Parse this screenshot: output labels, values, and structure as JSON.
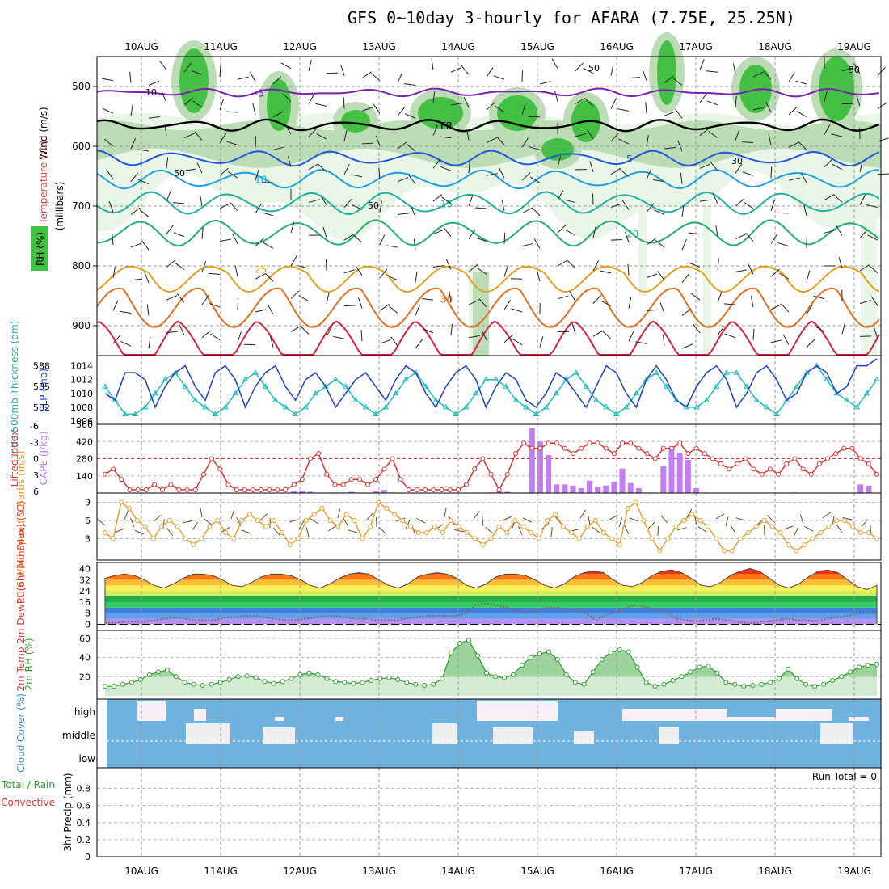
{
  "title": "GFS 0~10day 3-hourly for AFARA (7.75E, 25.25N)",
  "colors": {
    "cont_temp_neg": "#7a1fb0",
    "cont_blue": "#2255dd",
    "cont_cyan": "#1aa0dd",
    "cont_teal": "#22b0a0",
    "cont_green": "#22b070",
    "cont_orange1": "#e0a020",
    "cont_orange2": "#e07020",
    "cont_red": "#dd2040",
    "rh_light": "#e9f5e7",
    "rh_mid": "#bcdcb5",
    "rh_dark": "#43c043",
    "slp_line": "#1f3fc8",
    "thick_line": "#22bbbb",
    "li_line": "#dd3333",
    "cape_bar": "#c27ef2",
    "wind10": "#e8a030",
    "rh2": "#339933",
    "cloud_bg": "#6fb2dd",
    "cloud_fill": "#eeeeee"
  },
  "chart_data": [
    {
      "type": "contour",
      "name": "upper-air",
      "ylabel": "(millibars)",
      "side_labels": {
        "rh": "RH (%)",
        "temperature": "Temperature (°C)",
        "wind": "Wind (m/s)"
      },
      "days": [
        "10AUG",
        "11AUG",
        "12AUG",
        "13AUG",
        "14AUG",
        "15AUG",
        "16AUG",
        "17AUG",
        "18AUG",
        "19AUG"
      ],
      "pressure_ticks": [
        500,
        600,
        700,
        800,
        900
      ],
      "ylim": [
        450,
        950
      ],
      "freezing_label": "FR",
      "contours": [
        {
          "label": "-5",
          "level": 510,
          "color_key": "cont_temp_neg"
        },
        {
          "label": "FR",
          "level": 565,
          "color_key": "black"
        },
        {
          "label": "5",
          "level": 620,
          "color_key": "cont_blue"
        },
        {
          "label": "10",
          "level": 655,
          "color_key": "cont_cyan"
        },
        {
          "label": "15",
          "level": 695,
          "color_key": "cont_teal"
        },
        {
          "label": "20",
          "level": 745,
          "color_key": "cont_green"
        },
        {
          "label": "25",
          "level": 805,
          "color_key": "cont_orange1"
        },
        {
          "label": "30",
          "level": 855,
          "color_key": "cont_orange2"
        },
        {
          "label": "",
          "level": 920,
          "color_key": "cont_red"
        }
      ],
      "rh_labels": [
        "10",
        "50",
        "50",
        "30",
        "50",
        "50"
      ]
    },
    {
      "type": "line",
      "name": "slp-thickness",
      "ylabel_left": "1000-500mb Thickness (dm)",
      "ylabel_right": "SLP (mb)",
      "left_ticks": [
        582,
        585,
        588
      ],
      "right_ticks": [
        1006,
        1008,
        1010,
        1012,
        1014
      ],
      "series": [
        {
          "name": "SLP (mb)",
          "ylim": [
            1006,
            1015
          ],
          "values": [
            1010,
            1009,
            1013,
            1013,
            1012,
            1008,
            1011,
            1013,
            1014,
            1011,
            1009,
            1013,
            1014,
            1012,
            1008,
            1011,
            1013,
            1014,
            1011,
            1009,
            1012,
            1013,
            1011,
            1008,
            1010,
            1012,
            1013,
            1011,
            1009,
            1012,
            1014,
            1013,
            1010,
            1008,
            1011,
            1013,
            1014,
            1012,
            1008,
            1011,
            1013,
            1012,
            1009,
            1008,
            1010,
            1013,
            1012,
            1010,
            1008,
            1011,
            1014,
            1013,
            1010,
            1008,
            1012,
            1014,
            1012,
            1009,
            1008,
            1011,
            1013,
            1014,
            1012,
            1008,
            1010,
            1013,
            1014,
            1012,
            1009,
            1010,
            1013,
            1014,
            1013,
            1010,
            1011,
            1014,
            1014,
            1015
          ]
        },
        {
          "name": "Thickness (dm)",
          "ylim": [
            580,
            589
          ],
          "values": [
            585,
            583,
            581,
            581,
            582,
            584,
            586,
            587,
            585,
            583,
            582,
            581,
            582,
            584,
            586,
            587,
            585,
            583,
            582,
            581,
            582,
            584,
            585,
            586,
            585,
            583,
            582,
            581,
            582,
            584,
            586,
            587,
            585,
            583,
            582,
            581,
            582,
            584,
            586,
            586,
            585,
            583,
            582,
            581,
            582,
            584,
            586,
            587,
            585,
            583,
            582,
            581,
            582,
            584,
            586,
            587,
            585,
            583,
            582,
            582,
            583,
            585,
            587,
            587,
            585,
            583,
            582,
            581,
            583,
            585,
            587,
            588,
            586,
            584,
            583,
            582,
            584,
            586
          ]
        }
      ]
    },
    {
      "type": "bar+line",
      "name": "cape-li",
      "ylabel_left": "Lifted Index",
      "ylabel_right": "CAPE (J/kg)",
      "li_ticks": [
        "-6",
        "-3",
        "0",
        "3",
        "6"
      ],
      "cape_ticks": [
        140,
        280,
        420,
        560
      ],
      "cape_values": [
        0,
        0,
        0,
        0,
        0,
        0,
        0,
        0,
        0,
        0,
        0,
        0,
        0,
        0,
        0,
        0,
        0,
        0,
        0,
        0,
        0,
        0,
        0,
        15,
        20,
        10,
        0,
        0,
        5,
        5,
        10,
        0,
        0,
        20,
        25,
        5,
        0,
        0,
        0,
        0,
        0,
        0,
        0,
        0,
        0,
        0,
        0,
        5,
        15,
        10,
        0,
        0,
        530,
        420,
        310,
        70,
        70,
        60,
        40,
        100,
        50,
        60,
        90,
        200,
        80,
        40,
        5,
        0,
        220,
        380,
        330,
        270,
        40,
        5,
        0,
        0,
        0,
        0,
        0,
        0,
        0,
        0,
        0,
        0,
        5,
        0,
        0,
        0,
        0,
        0,
        0,
        0,
        70,
        60,
        0
      ],
      "li_values": [
        3,
        2,
        4,
        6,
        6,
        6,
        5,
        6,
        5,
        6,
        6,
        6,
        3,
        0,
        2,
        5,
        6,
        6,
        6,
        6,
        6,
        6,
        6,
        5,
        4,
        0,
        -1,
        3,
        5,
        5,
        4,
        4,
        5,
        4,
        2,
        0,
        4,
        6,
        6,
        6,
        6,
        6,
        6,
        6,
        5,
        2,
        0,
        3,
        6,
        3,
        -1,
        -3,
        -2,
        -2,
        -3,
        -3,
        -2,
        -1,
        -2,
        -3,
        -3,
        -2,
        -1,
        -3,
        -3,
        -2,
        -1,
        0,
        -2,
        -2,
        -3,
        -1,
        -2,
        -1,
        0,
        1,
        2,
        1,
        0,
        2,
        3,
        2,
        3,
        1,
        0,
        2,
        3,
        1,
        0,
        -1,
        -2,
        -2,
        0,
        1,
        3
      ]
    },
    {
      "type": "line",
      "name": "wind-10m",
      "ylabel": "10m Wind Speed & Barbs (m/s)",
      "ticks": [
        3,
        6,
        9
      ],
      "values": [
        4,
        3,
        9,
        8,
        6,
        5,
        3,
        5,
        6,
        5,
        3,
        2,
        3,
        5,
        6,
        4,
        3,
        6,
        7,
        6,
        5,
        6,
        4,
        2,
        3,
        6,
        7,
        8,
        6,
        5,
        7,
        6,
        3,
        5,
        9,
        8,
        7,
        6,
        5,
        4,
        4,
        5,
        4,
        6,
        5,
        4,
        3,
        2,
        3,
        5,
        4,
        6,
        5,
        4,
        3,
        6,
        7,
        5,
        4,
        3,
        5,
        6,
        4,
        3,
        2,
        8,
        9,
        6,
        3,
        1,
        3,
        5,
        6,
        7,
        6,
        5,
        3,
        1,
        1,
        3,
        4,
        5,
        6,
        5,
        4,
        2,
        1,
        2,
        3,
        4,
        5,
        6,
        6,
        5,
        4,
        4,
        3
      ]
    },
    {
      "type": "area",
      "name": "temp-2m",
      "ylabel": "2m Temp 2m DewPt (6hr Min/Max) (°C)",
      "ticks": [
        0,
        8,
        16,
        24,
        32,
        40
      ],
      "temp_values": [
        33,
        35,
        36,
        35,
        32,
        28,
        26,
        29,
        33,
        36,
        36,
        35,
        32,
        28,
        27,
        30,
        34,
        36,
        36,
        35,
        32,
        28,
        26,
        29,
        33,
        36,
        37,
        36,
        32,
        28,
        26,
        29,
        34,
        36,
        37,
        36,
        33,
        28,
        26,
        29,
        34,
        36,
        36,
        35,
        32,
        28,
        26,
        29,
        34,
        37,
        38,
        37,
        32,
        28,
        27,
        30,
        35,
        38,
        39,
        37,
        33,
        28,
        27,
        30,
        35,
        38,
        40,
        38,
        33,
        28,
        26,
        29,
        34,
        38,
        39,
        37,
        32,
        27,
        25,
        28
      ],
      "dew_values": [
        1,
        1,
        2,
        2,
        2,
        3,
        4,
        5,
        4,
        3,
        3,
        3,
        5,
        5,
        6,
        6,
        5,
        4,
        3,
        3,
        4,
        5,
        6,
        6,
        5,
        4,
        4,
        3,
        3,
        3,
        4,
        5,
        6,
        6,
        6,
        6,
        8,
        14,
        15,
        14,
        12,
        10,
        8,
        10,
        12,
        12,
        11,
        10,
        8,
        3,
        7,
        9,
        12,
        14,
        12,
        11,
        9,
        4,
        3,
        2,
        3,
        4,
        3,
        2,
        1,
        1,
        2,
        3,
        4,
        3,
        3,
        2,
        4,
        5,
        6,
        8,
        8,
        8
      ]
    },
    {
      "type": "area",
      "name": "rh-2m",
      "ylabel": "2m RH (%)",
      "ticks": [
        20,
        40,
        60
      ],
      "values": [
        10,
        10,
        12,
        14,
        17,
        22,
        25,
        27,
        20,
        14,
        12,
        11,
        12,
        14,
        17,
        20,
        21,
        19,
        15,
        13,
        15,
        18,
        22,
        24,
        22,
        18,
        15,
        14,
        13,
        14,
        16,
        18,
        19,
        17,
        14,
        12,
        11,
        12,
        18,
        45,
        55,
        58,
        42,
        24,
        20,
        19,
        22,
        32,
        40,
        44,
        46,
        38,
        22,
        14,
        12,
        25,
        38,
        45,
        48,
        46,
        30,
        14,
        10,
        12,
        16,
        20,
        25,
        30,
        31,
        24,
        14,
        12,
        10,
        11,
        12,
        14,
        18,
        28,
        18,
        12,
        10,
        12,
        16,
        20,
        25,
        30,
        32,
        33
      ]
    },
    {
      "type": "table",
      "name": "cloud-cover",
      "ylabel": "Cloud Cover (%)",
      "row_labels": [
        "high",
        "middle",
        "low"
      ]
    },
    {
      "type": "bar",
      "name": "precip",
      "ylabel": "3hr Precip (mm)",
      "legend_left": "Total / Rain",
      "legend_left2": "Convective",
      "ticks": [
        "0",
        "0.2",
        "0.4",
        "0.6",
        "0.8"
      ],
      "run_total": "Run Total = 0",
      "values": []
    }
  ]
}
